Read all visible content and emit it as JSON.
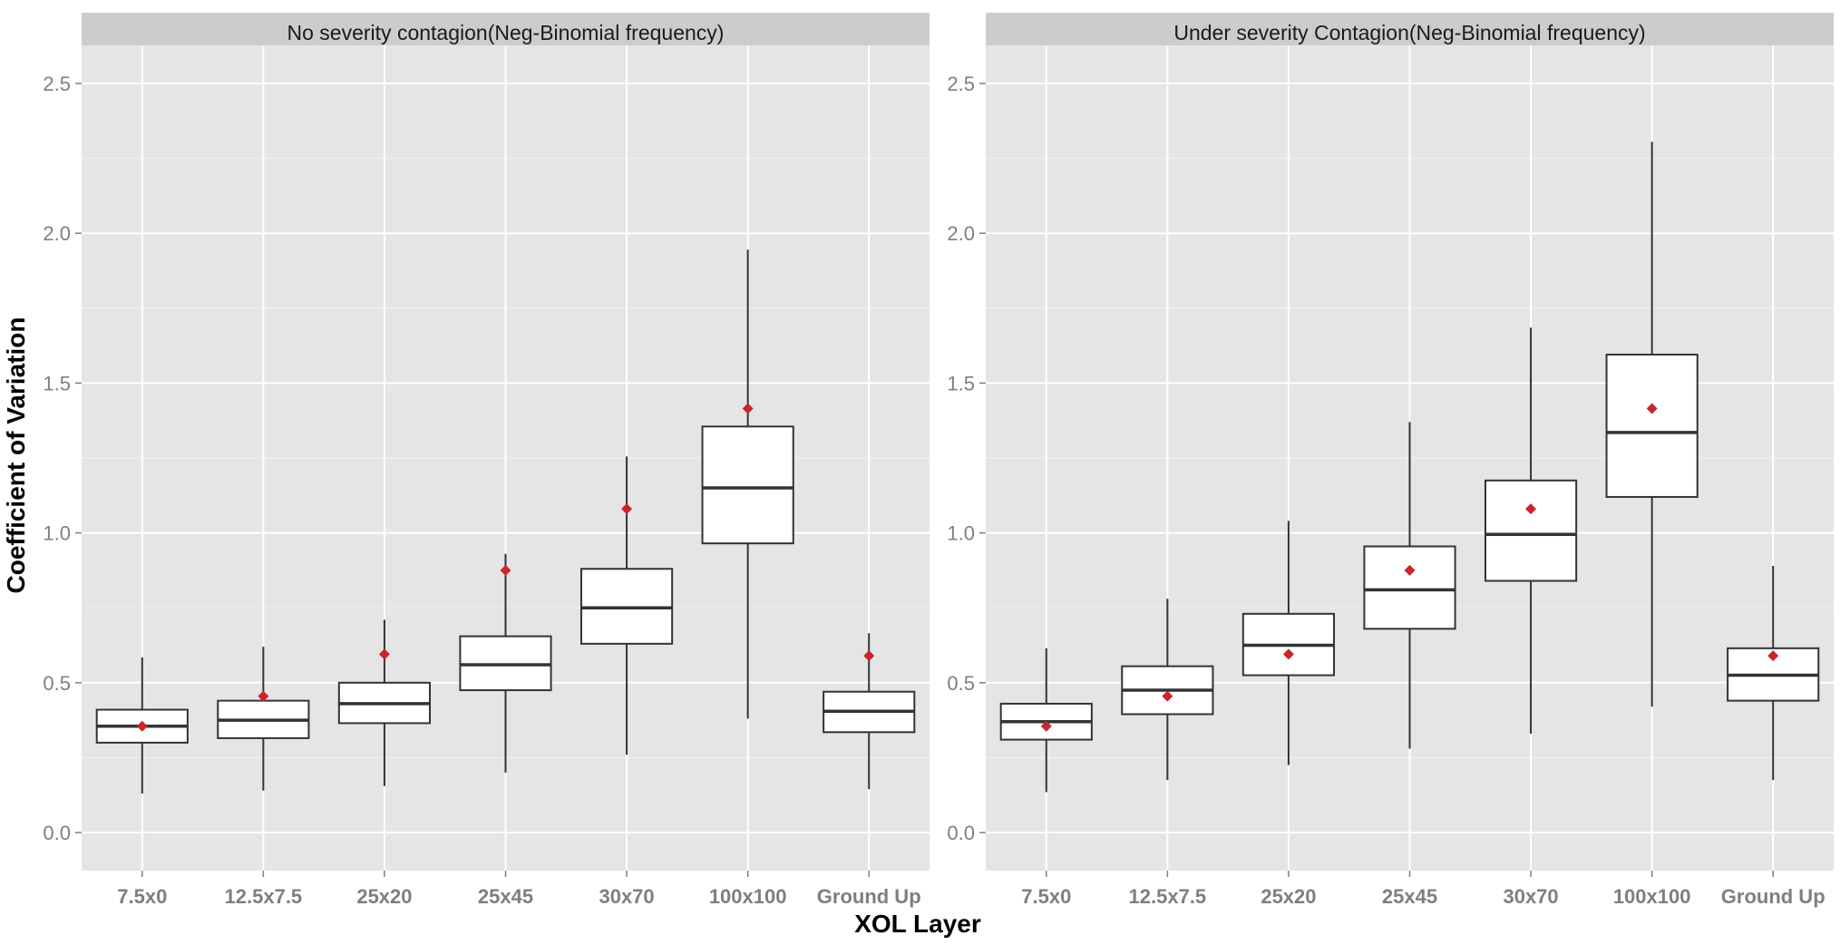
{
  "colors": {
    "panel_bg": "#e5e5e5",
    "strip_bg": "#cccccc",
    "grid": "#ffffff",
    "box_fill": "#ffffff",
    "box_line": "#333333",
    "mean_point": "#c8262b",
    "tick_text": "#7f7f7f"
  },
  "chart_data": {
    "type": "boxplot",
    "xlabel": "XOL Layer",
    "ylabel": "Coefficient of Variation",
    "categories": [
      "7.5x0",
      "12.5x7.5",
      "25x20",
      "25x45",
      "30x70",
      "100x100",
      "Ground Up"
    ],
    "ylim": [
      -0.12,
      2.65
    ],
    "yticks": [
      0.0,
      0.5,
      1.0,
      1.5,
      2.0,
      2.5
    ],
    "ytick_labels": [
      "0.0",
      "0.5",
      "1.0",
      "1.5",
      "2.0",
      "2.5"
    ],
    "grid": true,
    "legend": "none",
    "facets": [
      {
        "title": "No severity contagion(Neg-Binomial frequency)",
        "boxes": [
          {
            "category": "7.5x0",
            "whisker_low": 0.13,
            "q1": 0.3,
            "median": 0.355,
            "q3": 0.41,
            "whisker_high": 0.585,
            "mean": 0.355
          },
          {
            "category": "12.5x7.5",
            "whisker_low": 0.14,
            "q1": 0.315,
            "median": 0.375,
            "q3": 0.44,
            "whisker_high": 0.62,
            "mean": 0.455
          },
          {
            "category": "25x20",
            "whisker_low": 0.155,
            "q1": 0.365,
            "median": 0.43,
            "q3": 0.5,
            "whisker_high": 0.71,
            "mean": 0.595
          },
          {
            "category": "25x45",
            "whisker_low": 0.2,
            "q1": 0.475,
            "median": 0.56,
            "q3": 0.655,
            "whisker_high": 0.93,
            "mean": 0.875
          },
          {
            "category": "30x70",
            "whisker_low": 0.26,
            "q1": 0.63,
            "median": 0.75,
            "q3": 0.88,
            "whisker_high": 1.255,
            "mean": 1.08
          },
          {
            "category": "100x100",
            "whisker_low": 0.38,
            "q1": 0.965,
            "median": 1.15,
            "q3": 1.355,
            "whisker_high": 1.945,
            "mean": 1.415
          },
          {
            "category": "Ground Up",
            "whisker_low": 0.145,
            "q1": 0.335,
            "median": 0.405,
            "q3": 0.47,
            "whisker_high": 0.665,
            "mean": 0.59
          }
        ]
      },
      {
        "title": "Under severity Contagion(Neg-Binomial frequency)",
        "boxes": [
          {
            "category": "7.5x0",
            "whisker_low": 0.135,
            "q1": 0.31,
            "median": 0.37,
            "q3": 0.43,
            "whisker_high": 0.615,
            "mean": 0.355
          },
          {
            "category": "12.5x7.5",
            "whisker_low": 0.175,
            "q1": 0.395,
            "median": 0.475,
            "q3": 0.555,
            "whisker_high": 0.78,
            "mean": 0.455
          },
          {
            "category": "25x20",
            "whisker_low": 0.225,
            "q1": 0.525,
            "median": 0.625,
            "q3": 0.73,
            "whisker_high": 1.04,
            "mean": 0.595
          },
          {
            "category": "25x45",
            "whisker_low": 0.28,
            "q1": 0.68,
            "median": 0.81,
            "q3": 0.955,
            "whisker_high": 1.37,
            "mean": 0.875
          },
          {
            "category": "30x70",
            "whisker_low": 0.33,
            "q1": 0.84,
            "median": 0.995,
            "q3": 1.175,
            "whisker_high": 1.685,
            "mean": 1.08
          },
          {
            "category": "100x100",
            "whisker_low": 0.42,
            "q1": 1.12,
            "median": 1.335,
            "q3": 1.595,
            "whisker_high": 2.305,
            "mean": 1.415
          },
          {
            "category": "Ground Up",
            "whisker_low": 0.175,
            "q1": 0.44,
            "median": 0.525,
            "q3": 0.615,
            "whisker_high": 0.89,
            "mean": 0.59
          }
        ]
      }
    ]
  }
}
